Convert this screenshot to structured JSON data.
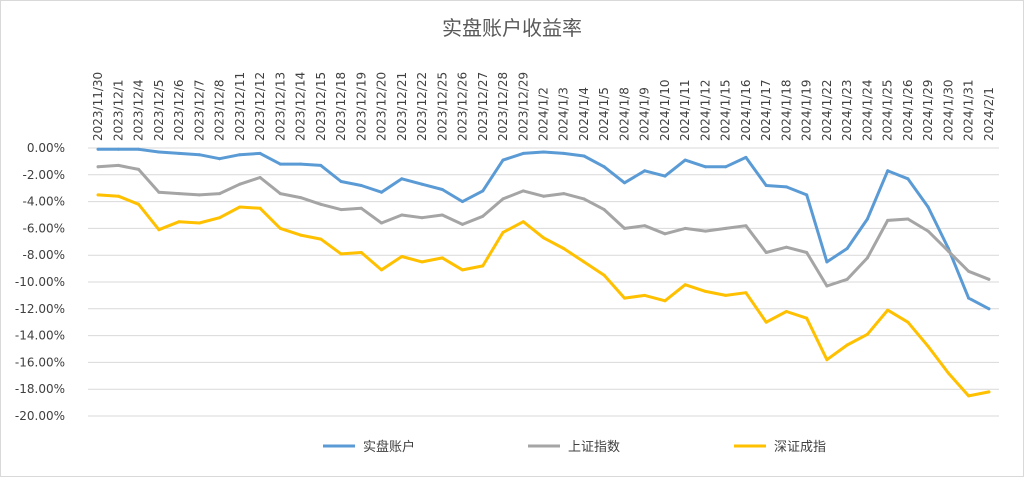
{
  "chart_data": {
    "type": "line",
    "title": "实盘账户收益率",
    "xlabel": "",
    "ylabel": "",
    "ylim": [
      -0.2,
      0.0
    ],
    "yticks": [
      "0.00%",
      "-2.00%",
      "-4.00%",
      "-6.00%",
      "-8.00%",
      "-10.00%",
      "-12.00%",
      "-14.00%",
      "-16.00%",
      "-18.00%",
      "-20.00%"
    ],
    "grid": "horizontal",
    "legend_position": "bottom",
    "categories": [
      "2023/11/30",
      "2023/12/1",
      "2023/12/4",
      "2023/12/5",
      "2023/12/6",
      "2023/12/7",
      "2023/12/8",
      "2023/12/11",
      "2023/12/12",
      "2023/12/13",
      "2023/12/14",
      "2023/12/15",
      "2023/12/18",
      "2023/12/19",
      "2023/12/20",
      "2023/12/21",
      "2023/12/22",
      "2023/12/25",
      "2023/12/26",
      "2023/12/27",
      "2023/12/28",
      "2023/12/29",
      "2024/1/2",
      "2024/1/3",
      "2024/1/4",
      "2024/1/5",
      "2024/1/8",
      "2024/1/9",
      "2024/1/10",
      "2024/1/11",
      "2024/1/12",
      "2024/1/15",
      "2024/1/16",
      "2024/1/17",
      "2024/1/18",
      "2024/1/19",
      "2024/1/22",
      "2024/1/23",
      "2024/1/24",
      "2024/1/25",
      "2024/1/26",
      "2024/1/29",
      "2024/1/30",
      "2024/1/31",
      "2024/2/1"
    ],
    "series": [
      {
        "name": "实盘账户",
        "color": "#5B9BD5",
        "values": [
          -0.001,
          -0.001,
          -0.001,
          -0.003,
          -0.004,
          -0.005,
          -0.008,
          -0.005,
          -0.004,
          -0.012,
          -0.012,
          -0.013,
          -0.025,
          -0.028,
          -0.033,
          -0.023,
          -0.027,
          -0.031,
          -0.04,
          -0.032,
          -0.009,
          -0.004,
          -0.003,
          -0.004,
          -0.006,
          -0.014,
          -0.026,
          -0.017,
          -0.021,
          -0.009,
          -0.014,
          -0.014,
          -0.007,
          -0.028,
          -0.029,
          -0.035,
          -0.085,
          -0.075,
          -0.053,
          -0.017,
          -0.023,
          -0.044,
          -0.075,
          -0.112,
          -0.12
        ]
      },
      {
        "name": "上证指数",
        "color": "#A5A5A5",
        "values": [
          -0.014,
          -0.013,
          -0.016,
          -0.033,
          -0.034,
          -0.035,
          -0.034,
          -0.027,
          -0.022,
          -0.034,
          -0.037,
          -0.042,
          -0.046,
          -0.045,
          -0.056,
          -0.05,
          -0.052,
          -0.05,
          -0.057,
          -0.051,
          -0.038,
          -0.032,
          -0.036,
          -0.034,
          -0.038,
          -0.046,
          -0.06,
          -0.058,
          -0.064,
          -0.06,
          -0.062,
          -0.06,
          -0.058,
          -0.078,
          -0.074,
          -0.078,
          -0.103,
          -0.098,
          -0.082,
          -0.054,
          -0.053,
          -0.062,
          -0.077,
          -0.092,
          -0.098
        ]
      },
      {
        "name": "深证成指",
        "color": "#FFC000",
        "values": [
          -0.035,
          -0.036,
          -0.042,
          -0.061,
          -0.055,
          -0.056,
          -0.052,
          -0.044,
          -0.045,
          -0.06,
          -0.065,
          -0.068,
          -0.079,
          -0.078,
          -0.091,
          -0.081,
          -0.085,
          -0.082,
          -0.091,
          -0.088,
          -0.063,
          -0.055,
          -0.067,
          -0.075,
          -0.085,
          -0.095,
          -0.112,
          -0.11,
          -0.114,
          -0.102,
          -0.107,
          -0.11,
          -0.108,
          -0.13,
          -0.122,
          -0.127,
          -0.158,
          -0.147,
          -0.139,
          -0.121,
          -0.13,
          -0.148,
          -0.168,
          -0.185,
          -0.182
        ]
      }
    ]
  }
}
